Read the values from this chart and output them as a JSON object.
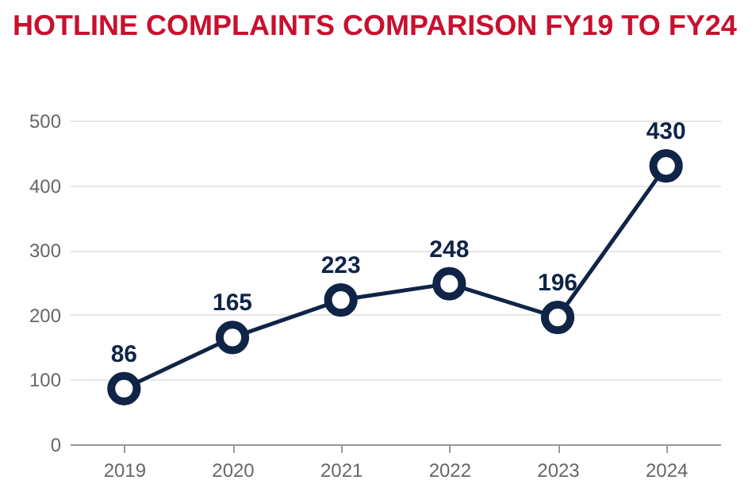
{
  "chart_data": {
    "type": "line",
    "title": "HOTLINE COMPLAINTS COMPARISON FY19 TO FY24",
    "categories": [
      "2019",
      "2020",
      "2021",
      "2022",
      "2023",
      "2024"
    ],
    "series": [
      {
        "color": "#0f2447",
        "values": [
          86,
          165,
          223,
          248,
          196,
          430
        ]
      }
    ],
    "ylim": [
      0,
      500
    ],
    "yticks": [
      0,
      100,
      200,
      300,
      400,
      500
    ],
    "grid": "y",
    "marker": "circle",
    "line_style": "solid",
    "data_labels": true
  }
}
